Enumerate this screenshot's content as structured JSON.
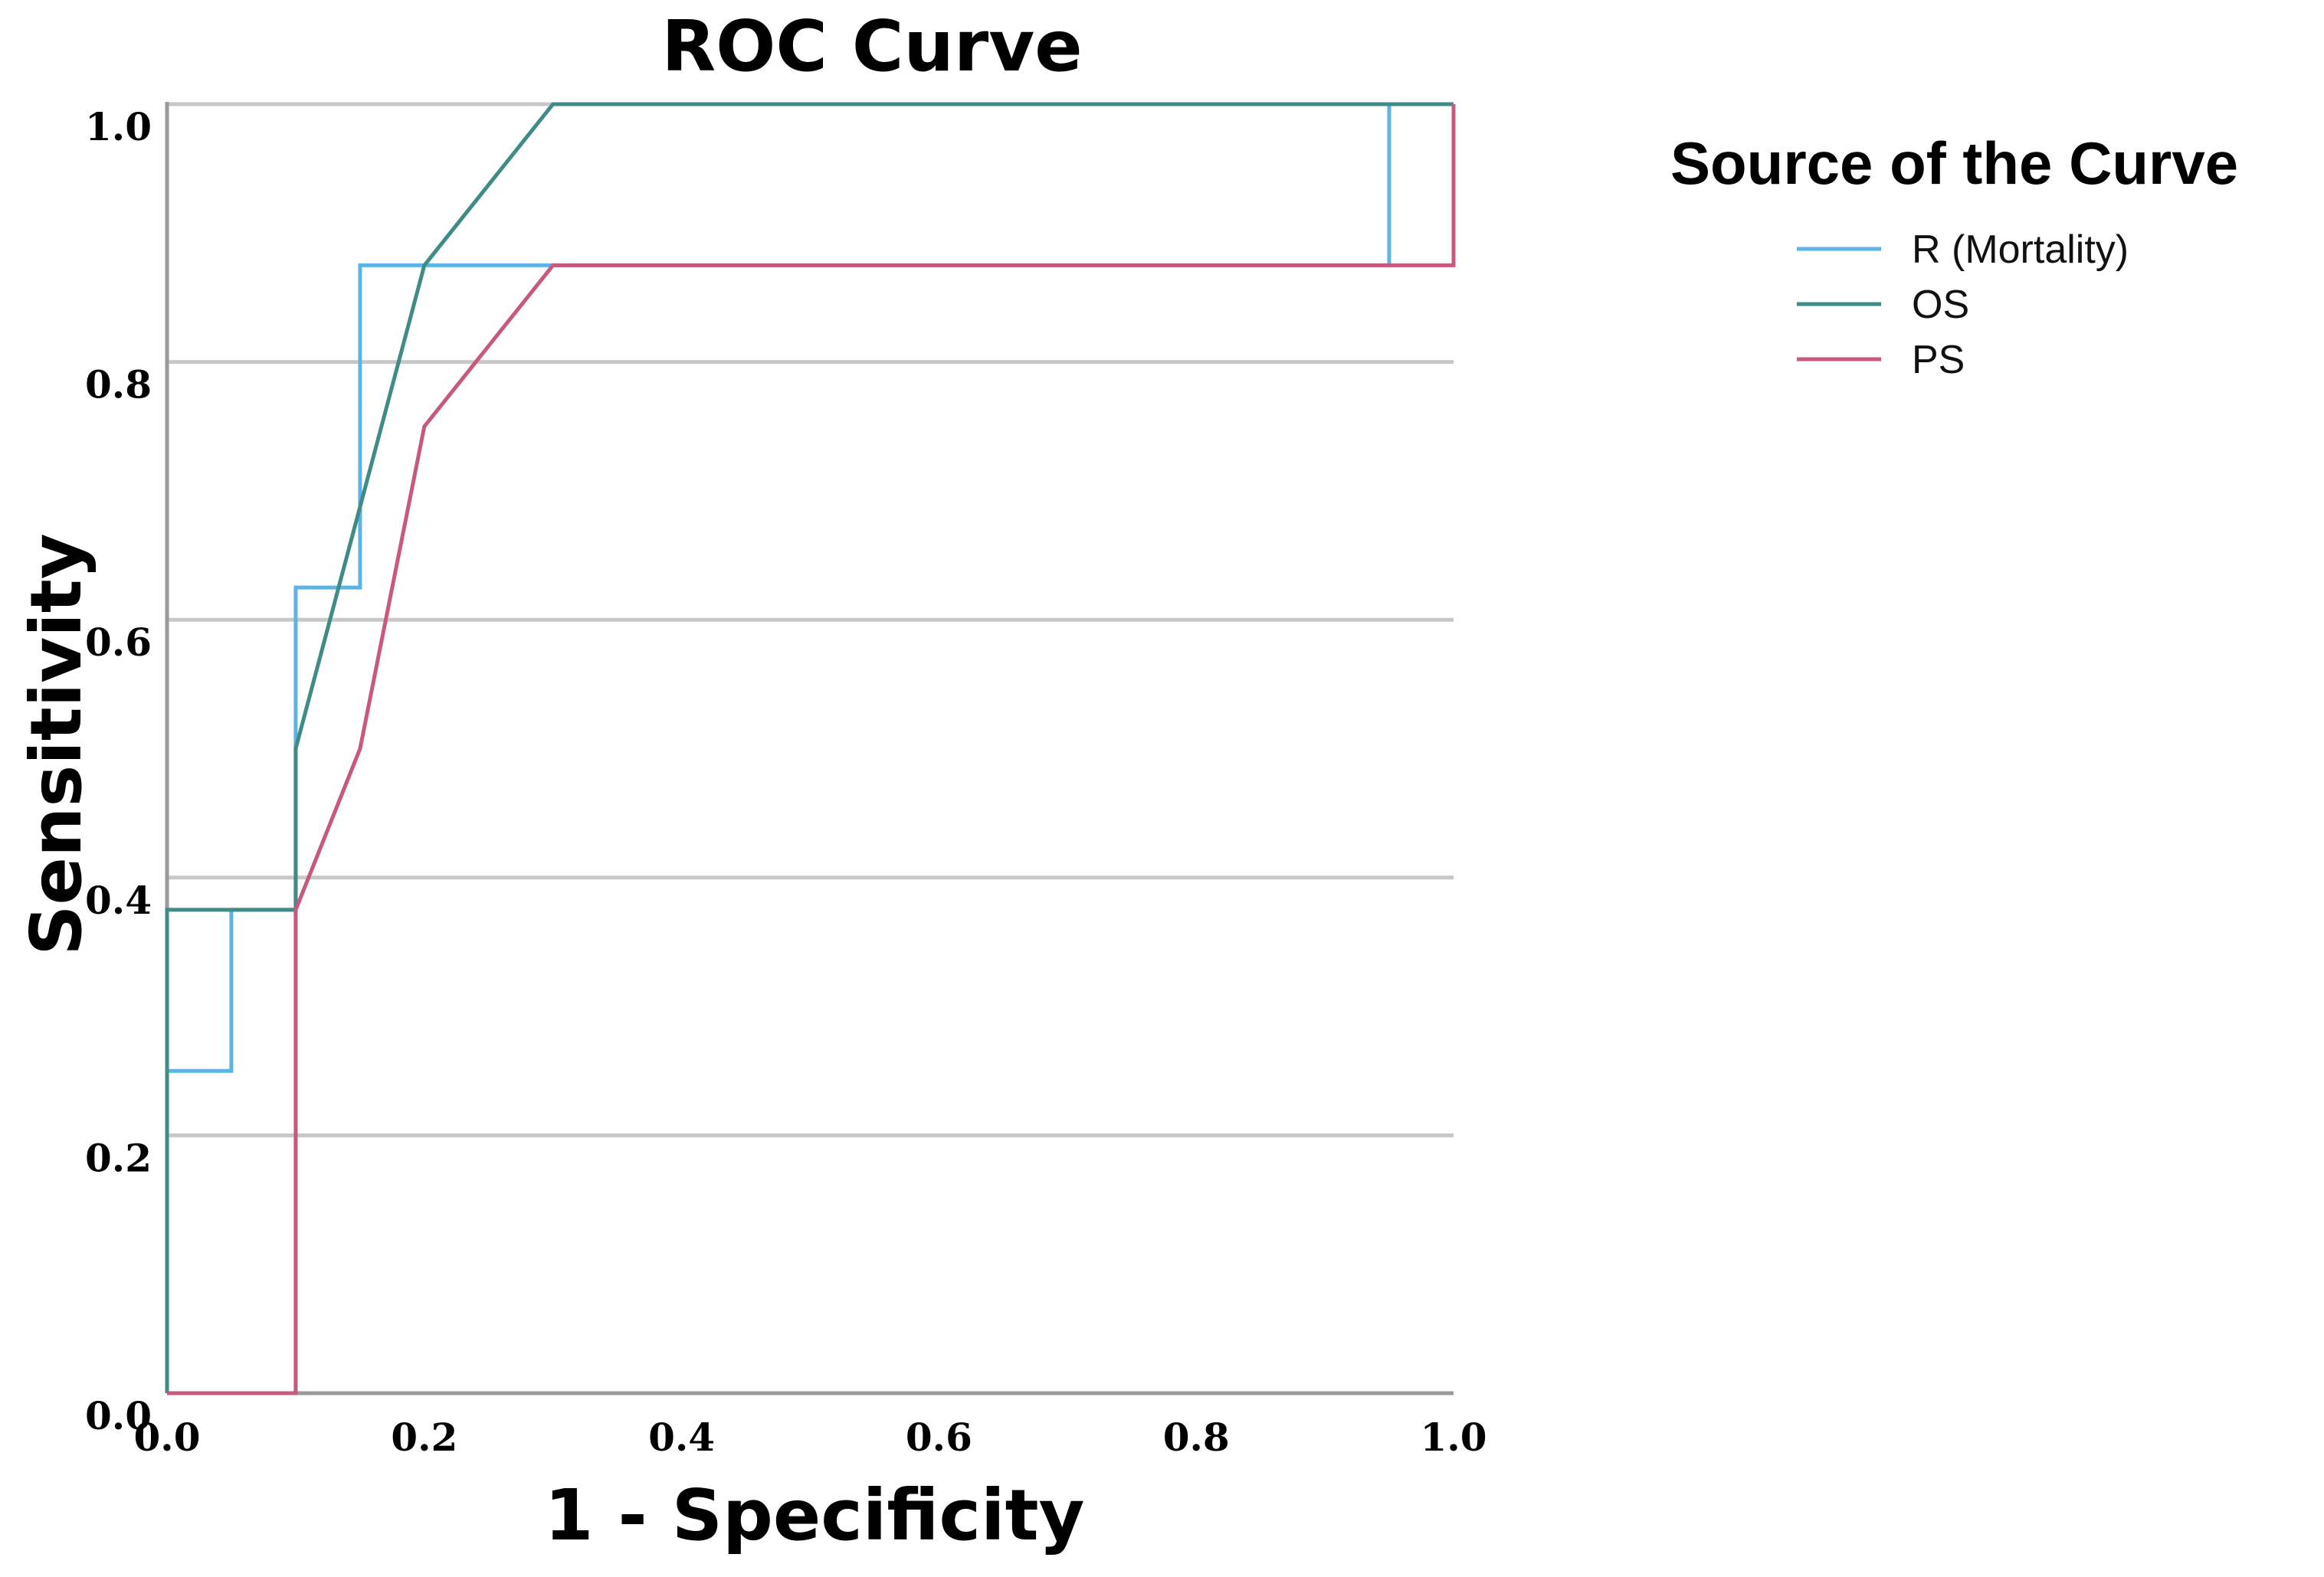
{
  "chart_data": {
    "type": "line",
    "title": "ROC Curve",
    "xlabel": "1 - Specificity",
    "ylabel": "Sensitivity",
    "xlim": [
      0,
      1
    ],
    "ylim": [
      0,
      1
    ],
    "x_ticks": [
      "0.0",
      "0.2",
      "0.4",
      "0.6",
      "0.8",
      "1.0"
    ],
    "y_ticks": [
      "0.0",
      "0.2",
      "0.4",
      "0.6",
      "0.8",
      "1.0"
    ],
    "grid": "horizontal",
    "legend": {
      "title": "Source of the Curve",
      "placement": "right"
    },
    "series": [
      {
        "name": "R (Mortality)",
        "color": "#5bb4e5",
        "points": [
          [
            0,
            0
          ],
          [
            0,
            0.25
          ],
          [
            0.05,
            0.25
          ],
          [
            0.05,
            0.375
          ],
          [
            0.1,
            0.375
          ],
          [
            0.1,
            0.625
          ],
          [
            0.15,
            0.625
          ],
          [
            0.15,
            0.875
          ],
          [
            0.95,
            0.875
          ],
          [
            0.95,
            1.0
          ],
          [
            1.0,
            1.0
          ]
        ]
      },
      {
        "name": "OS",
        "color": "#3f8b85",
        "points": [
          [
            0,
            0
          ],
          [
            0,
            0.375
          ],
          [
            0.1,
            0.375
          ],
          [
            0.1,
            0.5
          ],
          [
            0.2,
            0.875
          ],
          [
            0.3,
            1.0
          ],
          [
            1.0,
            1.0
          ]
        ]
      },
      {
        "name": "PS",
        "color": "#c9587f",
        "points": [
          [
            0,
            0
          ],
          [
            0.1,
            0
          ],
          [
            0.1,
            0.375
          ],
          [
            0.15,
            0.5
          ],
          [
            0.2,
            0.75
          ],
          [
            0.3,
            0.875
          ],
          [
            1.0,
            0.875
          ],
          [
            1.0,
            1.0
          ]
        ]
      }
    ]
  }
}
